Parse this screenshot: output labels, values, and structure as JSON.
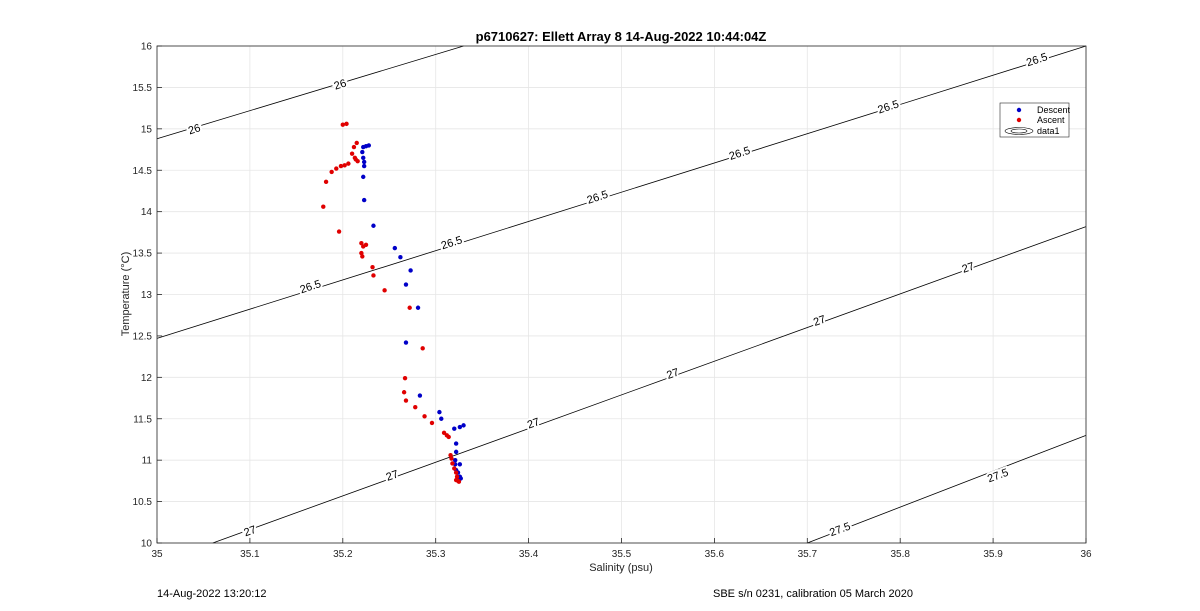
{
  "footer": {
    "timestamp": "14-Aug-2022 13:20:12",
    "calibration": "SBE s/n 0231, calibration 05 March 2020"
  },
  "colors": {
    "descent": "#0000c8",
    "ascent": "#e00000",
    "contour": "#000000",
    "grid": "#e6e6e6"
  },
  "chart_data": {
    "type": "scatter",
    "title": "p6710627: Ellett Array 8 14-Aug-2022 10:44:04Z",
    "xlabel": "Salinity (psu)",
    "ylabel": "Temperature (°C)",
    "xlim": [
      35,
      36
    ],
    "ylim": [
      10,
      16
    ],
    "xticks": [
      35,
      35.1,
      35.2,
      35.3,
      35.4,
      35.5,
      35.6,
      35.7,
      35.8,
      35.9,
      36
    ],
    "xtick_labels": [
      "35",
      "35.1",
      "35.2",
      "35.3",
      "35.4",
      "35.5",
      "35.6",
      "35.7",
      "35.8",
      "35.9",
      "36"
    ],
    "yticks": [
      10,
      10.5,
      11,
      11.5,
      12,
      12.5,
      13,
      13.5,
      14,
      14.5,
      15,
      15.5,
      16
    ],
    "ytick_labels": [
      "10",
      "10.5",
      "11",
      "11.5",
      "12",
      "12.5",
      "13",
      "13.5",
      "14",
      "14.5",
      "15",
      "15.5",
      "16"
    ],
    "grid": true,
    "legend_position": "top-right",
    "legend": [
      "Descent",
      "Ascent",
      "data1"
    ],
    "series": [
      {
        "name": "Descent",
        "x": [
          35.228,
          35.225,
          35.222,
          35.221,
          35.222,
          35.223,
          35.223,
          35.222,
          35.223,
          35.233,
          35.256,
          35.262,
          35.273,
          35.268,
          35.281,
          35.268,
          35.283,
          35.304,
          35.306,
          35.32,
          35.326,
          35.33,
          35.322,
          35.322,
          35.321,
          35.321,
          35.322,
          35.324,
          35.326,
          35.327,
          35.326,
          35.325
        ],
        "y": [
          14.8,
          14.79,
          14.78,
          14.72,
          14.65,
          14.6,
          14.55,
          14.42,
          14.14,
          13.83,
          13.56,
          13.45,
          13.29,
          13.12,
          12.84,
          12.42,
          11.78,
          11.58,
          11.5,
          11.38,
          11.4,
          11.42,
          11.2,
          11.1,
          11.0,
          10.95,
          10.88,
          10.85,
          10.95,
          10.78,
          10.8,
          10.76
        ]
      },
      {
        "name": "Ascent",
        "x": [
          35.204,
          35.2,
          35.215,
          35.212,
          35.21,
          35.213,
          35.214,
          35.216,
          35.206,
          35.202,
          35.198,
          35.193,
          35.188,
          35.182,
          35.179,
          35.196,
          35.22,
          35.222,
          35.225,
          35.22,
          35.221,
          35.232,
          35.233,
          35.245,
          35.272,
          35.286,
          35.267,
          35.266,
          35.268,
          35.278,
          35.288,
          35.296,
          35.309,
          35.312,
          35.314,
          35.316,
          35.317,
          35.318,
          35.32,
          35.322,
          35.323,
          35.322,
          35.324,
          35.325
        ],
        "y": [
          15.06,
          15.05,
          14.83,
          14.78,
          14.7,
          14.65,
          14.63,
          14.61,
          14.58,
          14.56,
          14.55,
          14.52,
          14.48,
          14.36,
          14.06,
          13.76,
          13.62,
          13.58,
          13.6,
          13.5,
          13.46,
          13.33,
          13.23,
          13.05,
          12.84,
          12.35,
          11.99,
          11.82,
          11.72,
          11.64,
          11.53,
          11.45,
          11.33,
          11.3,
          11.28,
          11.06,
          11.02,
          10.96,
          10.9,
          10.85,
          10.8,
          10.76,
          10.75,
          10.74
        ]
      },
      {
        "name": "data1",
        "type": "contour",
        "levels": [
          26,
          26.5,
          27,
          27.5
        ],
        "lines": [
          {
            "level": 26,
            "x": [
              35,
              35.33
            ],
            "y": [
              14.88,
              16
            ]
          },
          {
            "level": 26.5,
            "x": [
              35,
              36
            ],
            "y": [
              12.47,
              16
            ]
          },
          {
            "level": 27,
            "x": [
              35.06,
              36
            ],
            "y": [
              10,
              13.82
            ]
          },
          {
            "level": 27.5,
            "x": [
              35.7,
              36
            ],
            "y": [
              10,
              11.3
            ]
          }
        ],
        "labels": [
          {
            "text": "26",
            "x": 35.04,
            "y": 15.0,
            "angle": -18
          },
          {
            "text": "26",
            "x": 35.197,
            "y": 15.54,
            "angle": -18
          },
          {
            "text": "26.5",
            "x": 35.165,
            "y": 13.1,
            "angle": -18
          },
          {
            "text": "26.5",
            "x": 35.317,
            "y": 13.63,
            "angle": -18
          },
          {
            "text": "26.5",
            "x": 35.474,
            "y": 14.18,
            "angle": -18
          },
          {
            "text": "26.5",
            "x": 35.627,
            "y": 14.71,
            "angle": -18
          },
          {
            "text": "26.5",
            "x": 35.787,
            "y": 15.27,
            "angle": -18
          },
          {
            "text": "26.5",
            "x": 35.947,
            "y": 15.84,
            "angle": -18
          },
          {
            "text": "27",
            "x": 35.1,
            "y": 10.15,
            "angle": -19
          },
          {
            "text": "27",
            "x": 35.253,
            "y": 10.82,
            "angle": -19
          },
          {
            "text": "27",
            "x": 35.405,
            "y": 11.45,
            "angle": -19
          },
          {
            "text": "27",
            "x": 35.555,
            "y": 12.05,
            "angle": -19
          },
          {
            "text": "27",
            "x": 35.713,
            "y": 12.69,
            "angle": -19
          },
          {
            "text": "27",
            "x": 35.873,
            "y": 13.33,
            "angle": -19
          },
          {
            "text": "27.5",
            "x": 35.735,
            "y": 10.17,
            "angle": -20
          },
          {
            "text": "27.5",
            "x": 35.905,
            "y": 10.82,
            "angle": -20
          }
        ]
      }
    ]
  }
}
